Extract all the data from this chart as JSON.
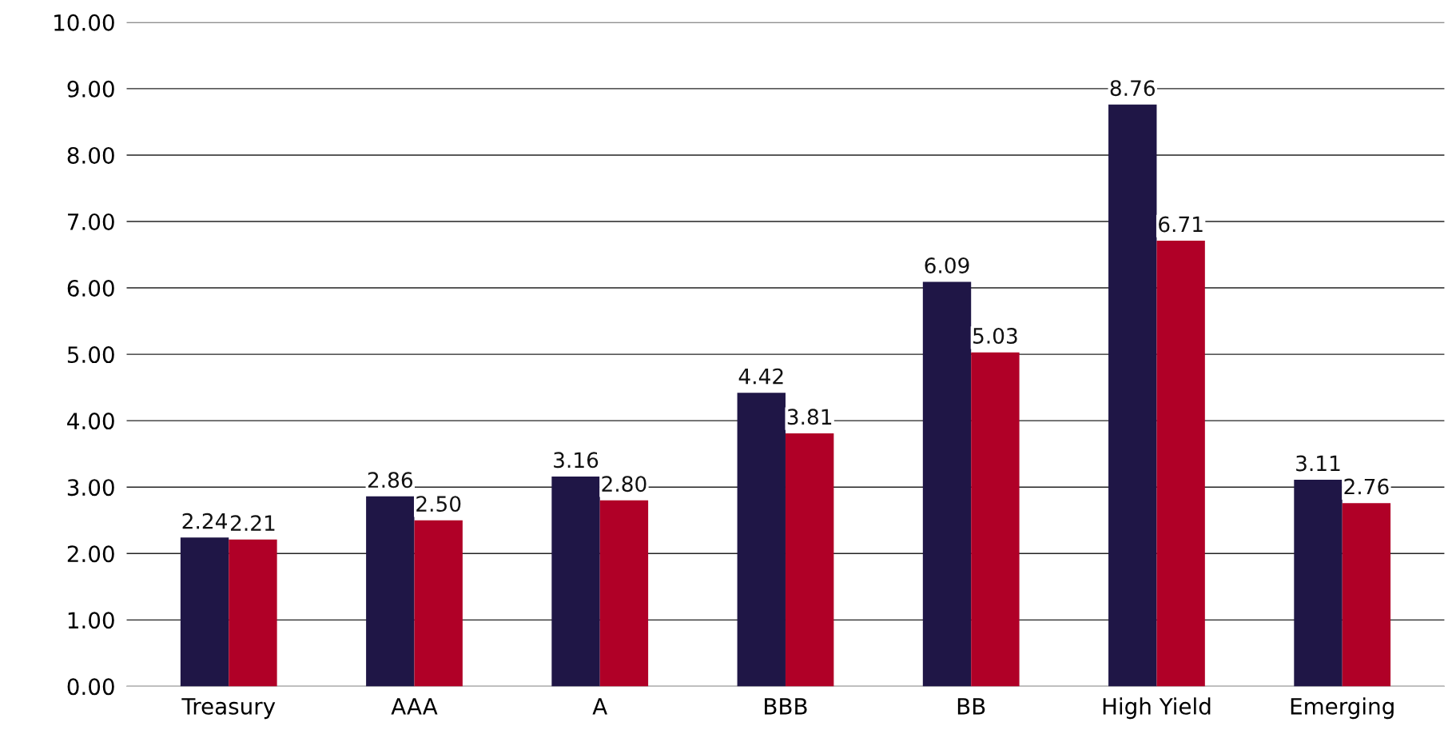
{
  "chart_data": {
    "type": "bar",
    "categories": [
      "Treasury",
      "AAA",
      "A",
      "BBB",
      "BB",
      "High Yield",
      "Emerging"
    ],
    "series": [
      {
        "color": "#1f1646",
        "values": [
          2.24,
          2.86,
          3.16,
          4.42,
          6.09,
          8.76,
          3.11
        ],
        "value_labels": [
          "2.24",
          "2.86",
          "3.16",
          "4.42",
          "6.09",
          "8.76",
          "3.11"
        ]
      },
      {
        "color": "#b00027",
        "values": [
          2.21,
          2.5,
          2.8,
          3.81,
          5.03,
          6.71,
          2.76
        ],
        "value_labels": [
          "2.21",
          "2.50",
          "2.80",
          "3.81",
          "5.03",
          "6.71",
          "2.76"
        ]
      }
    ],
    "ylim": [
      0,
      10
    ],
    "yticks": [
      {
        "value": 0,
        "label": "0.00"
      },
      {
        "value": 1,
        "label": "1.00"
      },
      {
        "value": 2,
        "label": "2.00"
      },
      {
        "value": 3,
        "label": "3.00"
      },
      {
        "value": 4,
        "label": "4.00"
      },
      {
        "value": 5,
        "label": "5.00"
      },
      {
        "value": 6,
        "label": "6.00"
      },
      {
        "value": 7,
        "label": "7.00"
      },
      {
        "value": 8,
        "label": "8.00"
      },
      {
        "value": 9,
        "label": "9.00"
      },
      {
        "value": 10,
        "label": "10.00"
      }
    ],
    "grid": "y",
    "legend": false
  }
}
